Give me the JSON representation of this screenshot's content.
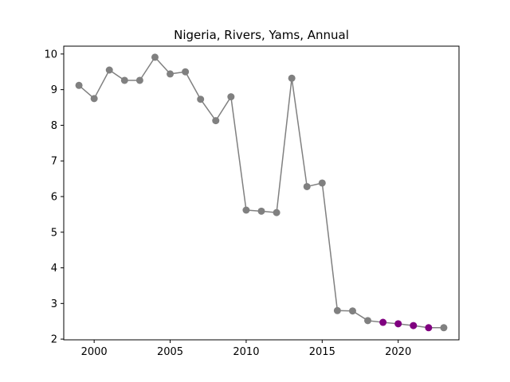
{
  "chart_data": {
    "type": "line",
    "title": "Nigeria, Rivers, Yams, Annual",
    "xlabel": "",
    "ylabel": "",
    "xlim": [
      1998.0,
      2024.0
    ],
    "ylim": [
      1.98,
      10.22
    ],
    "xticks": [
      2000,
      2005,
      2010,
      2015,
      2020
    ],
    "yticks": [
      2,
      3,
      4,
      5,
      6,
      7,
      8,
      9,
      10
    ],
    "grid": false,
    "line_color": "#808080",
    "series": [
      {
        "x": [
          1999,
          2000,
          2001,
          2002,
          2003,
          2004,
          2005,
          2006,
          2007,
          2008,
          2009,
          2010,
          2011,
          2012,
          2013,
          2014,
          2015,
          2016,
          2017,
          2018,
          2019,
          2020,
          2021,
          2022,
          2023
        ],
        "values": [
          9.12,
          8.75,
          9.55,
          9.26,
          9.26,
          9.91,
          9.44,
          9.5,
          8.73,
          8.13,
          8.8,
          5.62,
          5.59,
          5.55,
          9.32,
          6.28,
          6.38,
          2.8,
          2.79,
          2.52,
          2.47,
          2.43,
          2.38,
          2.32,
          2.32
        ],
        "point_colors": [
          "#808080",
          "#808080",
          "#808080",
          "#808080",
          "#808080",
          "#808080",
          "#808080",
          "#808080",
          "#808080",
          "#808080",
          "#808080",
          "#808080",
          "#808080",
          "#808080",
          "#808080",
          "#808080",
          "#808080",
          "#808080",
          "#808080",
          "#808080",
          "#800080",
          "#800080",
          "#800080",
          "#800080",
          "#808080"
        ]
      }
    ]
  }
}
